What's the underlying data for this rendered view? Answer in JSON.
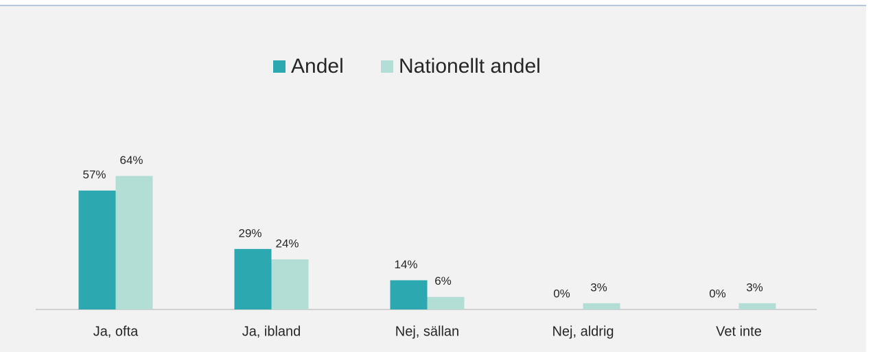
{
  "chart_data": {
    "type": "bar",
    "categories": [
      "Ja, ofta",
      "Ja, ibland",
      "Nej, sällan",
      "Nej, aldrig",
      "Vet inte"
    ],
    "series": [
      {
        "name": "Andel",
        "color": "#2ba8b0",
        "values": [
          57,
          29,
          14,
          0,
          0
        ],
        "value_labels": [
          "57%",
          "29%",
          "14%",
          "0%",
          "0%"
        ]
      },
      {
        "name": "Nationellt andel",
        "color": "#b3ded6",
        "values": [
          64,
          24,
          6,
          3,
          3
        ],
        "value_labels": [
          "64%",
          "24%",
          "6%",
          "3%",
          "3%"
        ]
      }
    ],
    "legend": "top"
  }
}
